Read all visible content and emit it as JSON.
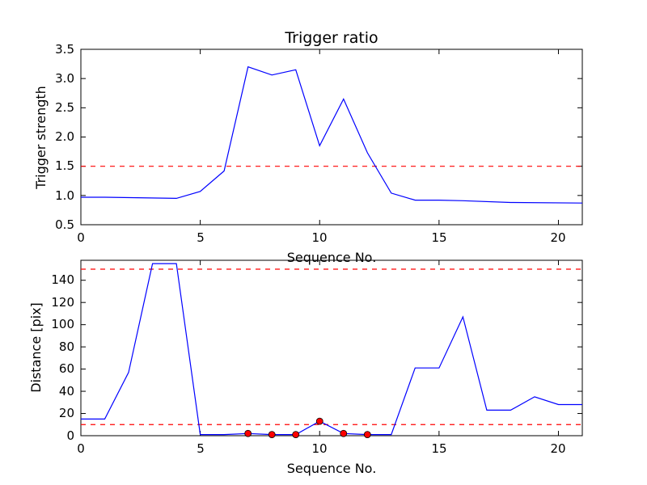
{
  "chart_data": [
    {
      "type": "line",
      "title": "Trigger ratio",
      "xlabel": "Sequence No.",
      "ylabel": "Trigger strength",
      "xlim": [
        0,
        21
      ],
      "ylim": [
        0.5,
        3.5
      ],
      "xticks": [
        0,
        5,
        10,
        15,
        20
      ],
      "yticks": [
        0.5,
        1.0,
        1.5,
        2.0,
        2.5,
        3.0,
        3.5
      ],
      "ytick_labels": [
        "0.5",
        "1.0",
        "1.5",
        "2.0",
        "2.5",
        "3.0",
        "3.5"
      ],
      "grid": false,
      "series": [
        {
          "color": "#0000ff",
          "x": [
            0,
            1,
            4,
            5,
            6,
            7,
            8,
            9,
            10,
            11,
            12,
            13,
            14,
            15,
            16,
            18,
            21
          ],
          "y": [
            0.97,
            0.97,
            0.95,
            1.07,
            1.42,
            3.2,
            3.06,
            3.15,
            1.85,
            2.65,
            1.73,
            1.04,
            0.92,
            0.92,
            0.91,
            0.88,
            0.87
          ]
        }
      ],
      "hlines": [
        {
          "y": 1.5,
          "color": "#ff0000",
          "style": "dashed"
        }
      ]
    },
    {
      "type": "line",
      "title": "",
      "xlabel": "Sequence No.",
      "ylabel": "Distance [pix]",
      "xlim": [
        0,
        21
      ],
      "ylim": [
        0,
        158
      ],
      "xticks": [
        0,
        5,
        10,
        15,
        20
      ],
      "yticks": [
        0,
        20,
        40,
        60,
        80,
        100,
        120,
        140
      ],
      "ytick_labels": [
        "0",
        "20",
        "40",
        "60",
        "80",
        "100",
        "120",
        "140"
      ],
      "grid": false,
      "series": [
        {
          "color": "#0000ff",
          "x": [
            0,
            1,
            2,
            3,
            4,
            5,
            6,
            7,
            8,
            9,
            10,
            11,
            12,
            13,
            14,
            15,
            16,
            17,
            18,
            19,
            20,
            21
          ],
          "y": [
            15,
            15,
            57,
            155,
            155,
            1,
            1,
            2,
            1,
            1,
            13,
            2,
            1,
            1,
            61,
            61,
            107,
            23,
            23,
            35,
            28,
            28
          ]
        }
      ],
      "markers": {
        "color": "#ff0000",
        "x": [
          7,
          8,
          9,
          10,
          11,
          12
        ],
        "y": [
          2,
          1,
          1,
          13,
          2,
          1
        ]
      },
      "hlines": [
        {
          "y": 150,
          "color": "#ff0000",
          "style": "dashed"
        },
        {
          "y": 10,
          "color": "#ff0000",
          "style": "dashed"
        }
      ]
    }
  ]
}
